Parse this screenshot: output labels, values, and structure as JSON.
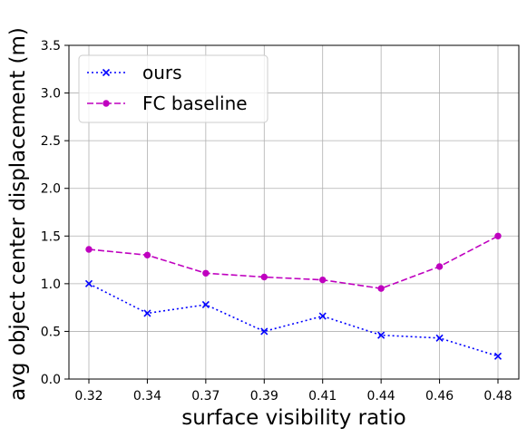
{
  "chart_data": {
    "type": "line",
    "xlabel": "surface visibility ratio",
    "ylabel": "avg object center displacement (m)",
    "categories": [
      "0.32",
      "0.34",
      "0.37",
      "0.39",
      "0.41",
      "0.44",
      "0.46",
      "0.48"
    ],
    "ylim": [
      0.0,
      3.5
    ],
    "yticks": [
      "0.0",
      "0.5",
      "1.0",
      "1.5",
      "2.0",
      "2.5",
      "3.0",
      "3.5"
    ],
    "grid": true,
    "legend_position": "top-left",
    "series": [
      {
        "name": "ours",
        "color": "#0000ff",
        "line_style": "dotted",
        "marker": "x",
        "values": [
          1.0,
          0.69,
          0.78,
          0.5,
          0.66,
          0.46,
          0.43,
          0.24
        ]
      },
      {
        "name": "FC baseline",
        "color": "#bf00bf",
        "line_style": "dashed",
        "marker": "circle",
        "values": [
          1.36,
          1.3,
          1.11,
          1.07,
          1.04,
          0.95,
          1.18,
          1.5
        ]
      }
    ]
  }
}
